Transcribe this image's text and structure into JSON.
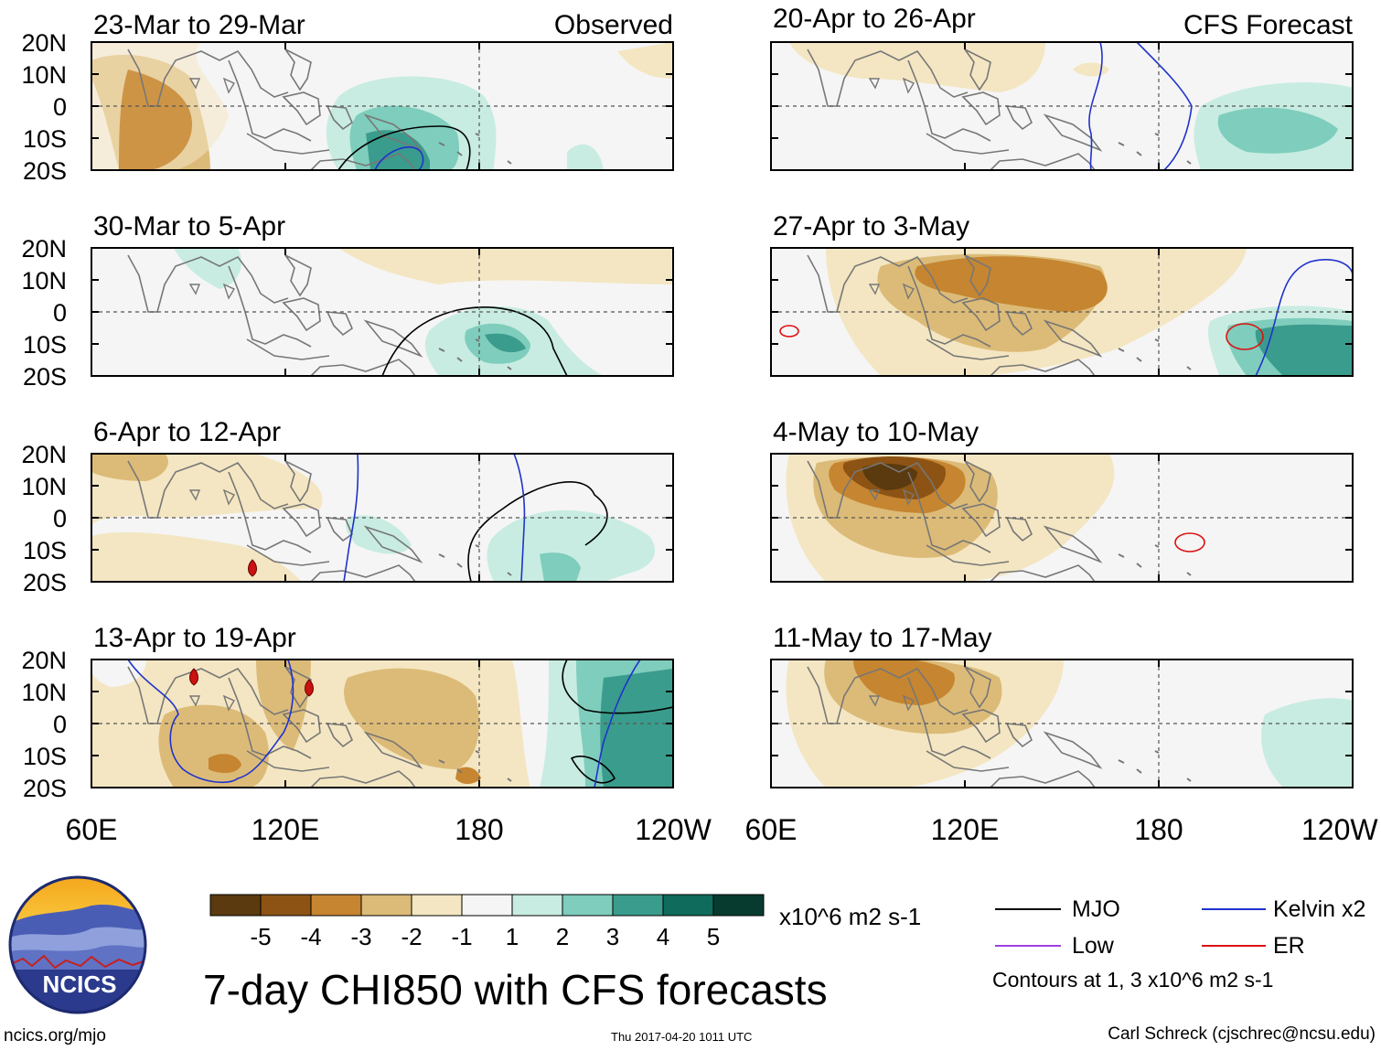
{
  "title": "7-day CHI850 with CFS forecasts",
  "units": "x10^6 m2 s-1",
  "site": "ncics.org/mjo",
  "timestamp": "Thu 2017-04-20 1011 UTC",
  "credit": "Carl Schreck (cjschrec@ncsu.edu)",
  "logo_text": "NCICS",
  "headers": {
    "left": "Observed",
    "right": "CFS Forecast"
  },
  "lat_labels": [
    "20N",
    "10N",
    "0",
    "10S",
    "20S"
  ],
  "lon_labels": [
    "60E",
    "120E",
    "180",
    "120W"
  ],
  "panels_left": [
    {
      "period": "23-Mar to 29-Mar"
    },
    {
      "period": "30-Mar to 5-Apr"
    },
    {
      "period": "6-Apr to 12-Apr"
    },
    {
      "period": "13-Apr to 19-Apr"
    }
  ],
  "panels_right": [
    {
      "period": "20-Apr to 26-Apr"
    },
    {
      "period": "27-Apr to 3-May"
    },
    {
      "period": "4-May to 10-May"
    },
    {
      "period": "11-May to 17-May"
    }
  ],
  "colorbar": {
    "colors": [
      "#5a3a0e",
      "#8c5314",
      "#c68530",
      "#dcbb78",
      "#f4e6c2",
      "#f5f5f5",
      "#c8ece2",
      "#7fcdbc",
      "#3a9c8c",
      "#0f6b5c",
      "#073b30"
    ],
    "labels": [
      "-5",
      "-4",
      "-3",
      "-2",
      "-1",
      "1",
      "2",
      "3",
      "4",
      "5"
    ]
  },
  "legend": {
    "mjo": {
      "label": "MJO",
      "color": "#000000"
    },
    "kelvin": {
      "label": "Kelvin x2",
      "color": "#1f33cc"
    },
    "low": {
      "label": "Low",
      "color": "#a040e0"
    },
    "er": {
      "label": "ER",
      "color": "#dd1111"
    },
    "note": "Contours at 1, 3 x10^6 m2 s-1"
  },
  "colors": {
    "dry1": "#f4e6c2",
    "dry2": "#dcbb78",
    "dry3": "#c68530",
    "dry4": "#8c5314",
    "dry5": "#5a3a0e",
    "wet1": "#c8ece2",
    "wet2": "#7fcdbc",
    "wet3": "#3a9c8c",
    "wet4": "#0f6b5c",
    "land": "#777777"
  }
}
